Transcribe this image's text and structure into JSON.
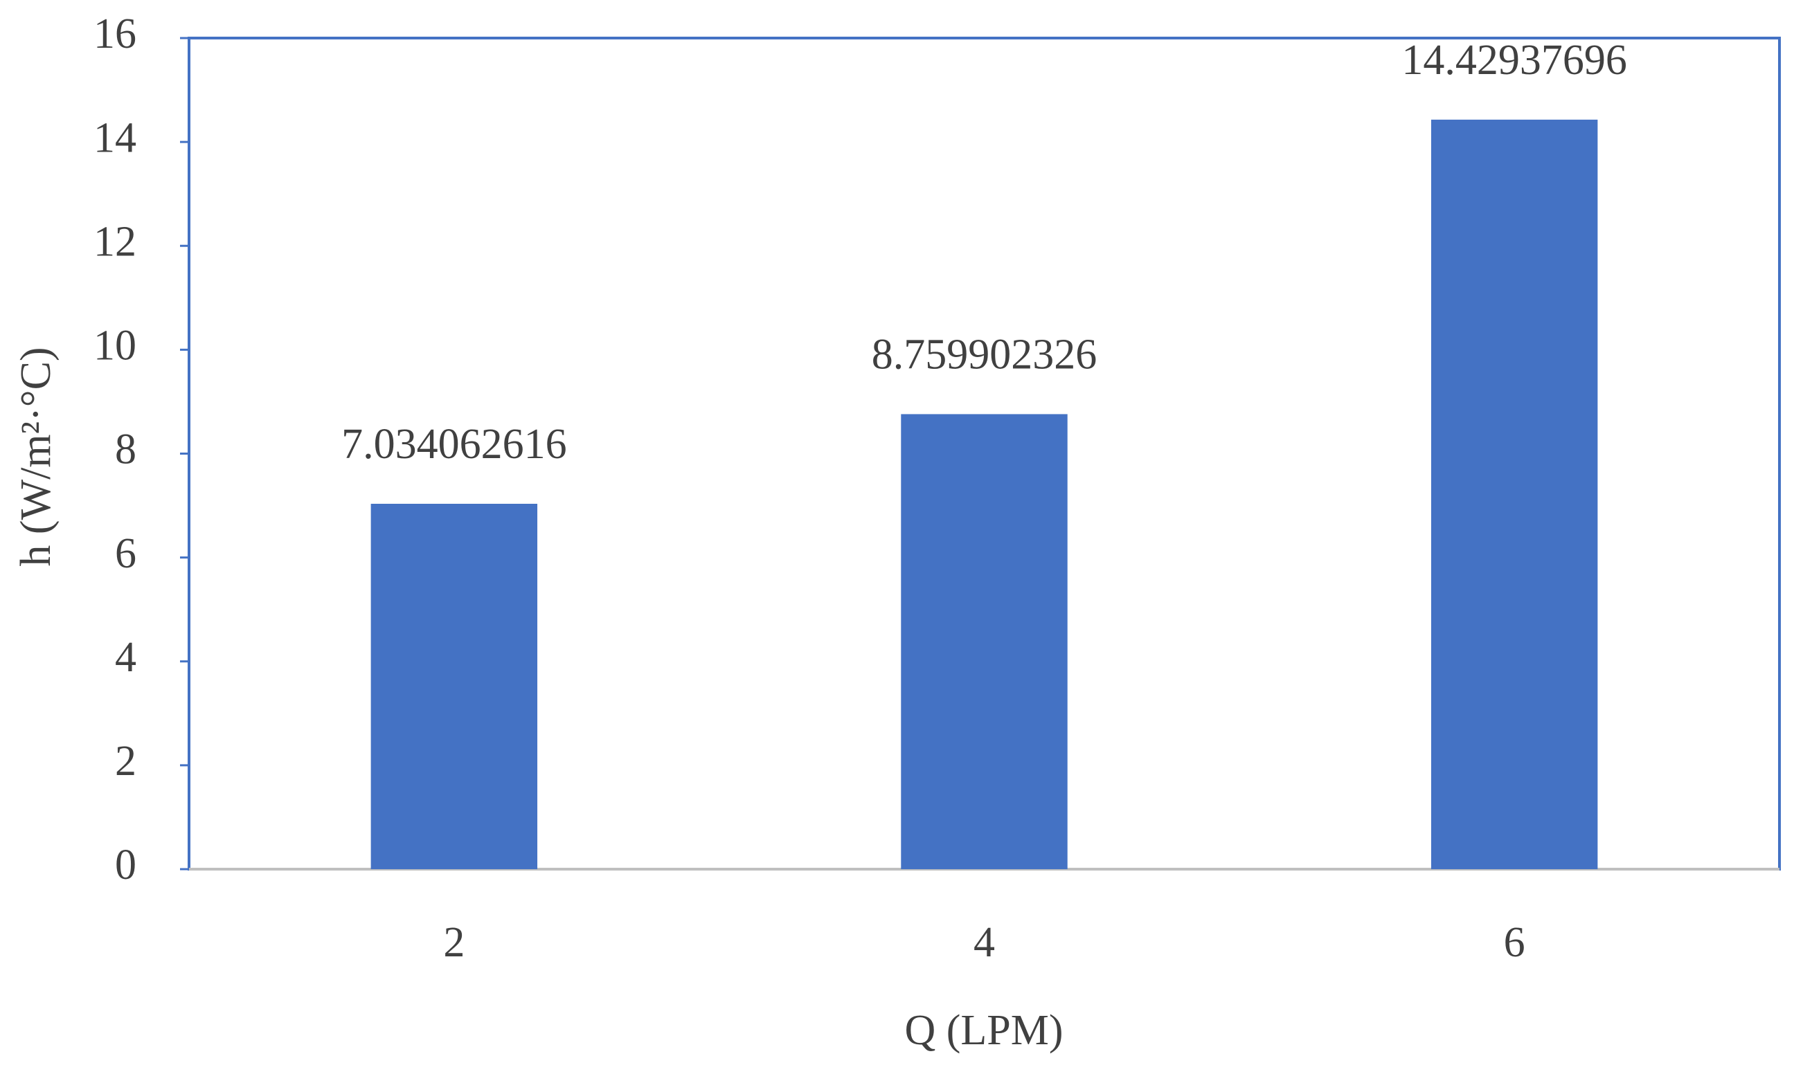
{
  "chart_data": {
    "type": "bar",
    "x_label": "Q (LPM)",
    "y_label": "h (W/m²·°C)",
    "categories": [
      "2",
      "4",
      "6"
    ],
    "values": [
      7.034062616,
      8.759902326,
      14.42937696
    ],
    "color": "#4472c4",
    "ylim": [
      0,
      16
    ],
    "yticks": [
      0,
      2,
      4,
      6,
      8,
      10,
      12,
      14,
      16
    ],
    "grid": false
  }
}
